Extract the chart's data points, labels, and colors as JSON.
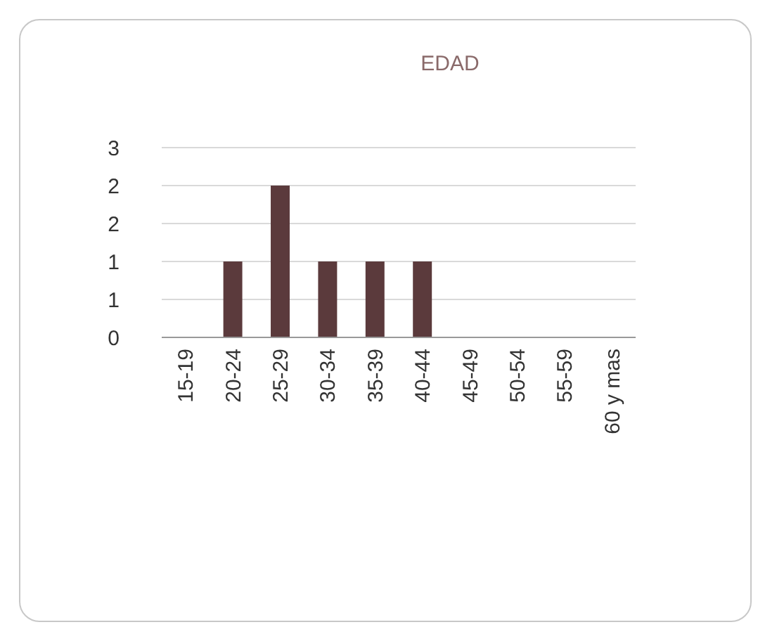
{
  "chart_data": {
    "type": "bar",
    "title": "EDAD",
    "categories": [
      "15-19",
      "20-24",
      "25-29",
      "30-34",
      "35-39",
      "40-44",
      "45-49",
      "50-54",
      "55-59",
      "60 y mas"
    ],
    "values": [
      0,
      1,
      2,
      1,
      1,
      1,
      0,
      0,
      0,
      0
    ],
    "color": "#5b3a3c",
    "ylim": [
      0,
      2.5
    ],
    "yticks": [
      {
        "value": 0,
        "label": "0"
      },
      {
        "value": 0.5,
        "label": "1"
      },
      {
        "value": 1,
        "label": "1"
      },
      {
        "value": 1.5,
        "label": "2"
      },
      {
        "value": 2,
        "label": "2"
      },
      {
        "value": 2.5,
        "label": "3"
      }
    ],
    "grid": "y"
  }
}
